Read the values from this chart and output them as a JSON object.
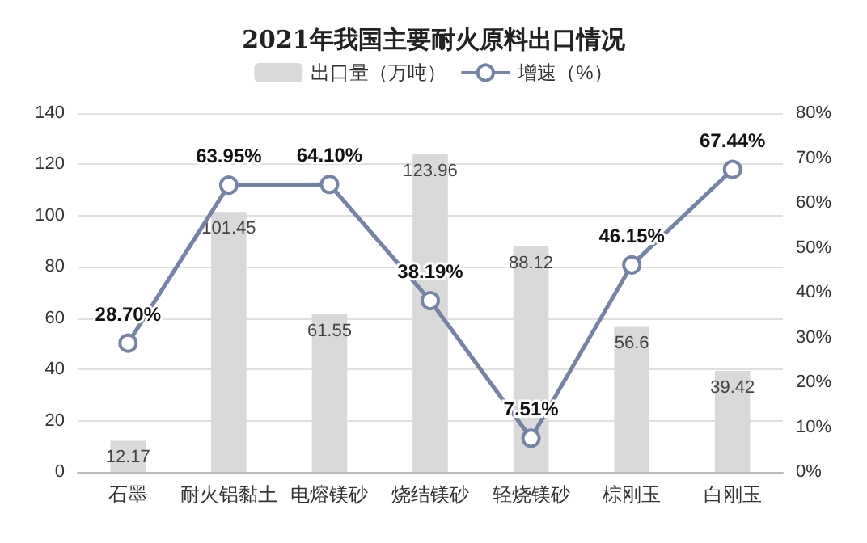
{
  "chart_data": {
    "type": "bar",
    "title": "2021年我国主要耐火原料出口情况",
    "categories": [
      "石墨",
      "耐火铝黏土",
      "电熔镁砂",
      "烧结镁砂",
      "轻烧镁砂",
      "棕刚玉",
      "白刚玉"
    ],
    "series": [
      {
        "name": "出口量（万吨）",
        "color": "#d9d9d9",
        "values": [
          12.17,
          101.45,
          61.55,
          123.96,
          88.12,
          56.6,
          39.42
        ],
        "value_labels": [
          "12.17",
          "101.45",
          "61.55",
          "123.96",
          "88.12",
          "56.6",
          "39.42"
        ]
      },
      {
        "name": "增速（%）",
        "type": "line",
        "axis": "y2",
        "color": "#7683a3",
        "values": [
          28.7,
          63.95,
          64.1,
          38.19,
          7.51,
          46.15,
          67.44
        ],
        "value_labels": [
          "28.70%",
          "63.95%",
          "64.10%",
          "38.19%",
          "7.51%",
          "46.15%",
          "67.44%"
        ]
      }
    ],
    "ylim": [
      0,
      140
    ],
    "yticks": [
      0,
      20,
      40,
      60,
      80,
      100,
      120,
      140
    ],
    "y2lim": [
      0,
      80
    ],
    "y2ticks": [
      {
        "value": 0,
        "label": "0%"
      },
      {
        "value": 10,
        "label": "10%"
      },
      {
        "value": 20,
        "label": "20%"
      },
      {
        "value": 30,
        "label": "30%"
      },
      {
        "value": 40,
        "label": "40%"
      },
      {
        "value": 50,
        "label": "50%"
      },
      {
        "value": 60,
        "label": "60%"
      },
      {
        "value": 70,
        "label": "70%"
      },
      {
        "value": 80,
        "label": "80%"
      }
    ],
    "grid": "y",
    "legend": "top",
    "marker": "circle",
    "line_style": "solid"
  }
}
